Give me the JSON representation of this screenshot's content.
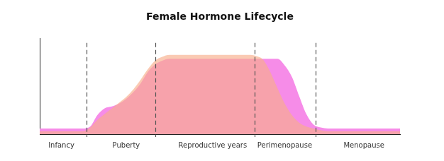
{
  "chart_data": {
    "type": "area",
    "title": "Female Hormone Lifecycle",
    "categories": [
      null,
      null,
      null,
      "Infancy",
      null,
      null,
      null,
      null,
      null,
      null,
      null,
      null,
      "Puberty",
      null,
      null,
      null,
      null,
      null,
      null,
      null,
      null,
      null,
      null,
      null,
      "Reproductive years",
      null,
      null,
      null,
      null,
      null,
      null,
      null,
      null,
      null,
      "Perimenopause",
      null,
      null,
      null,
      null,
      null,
      null,
      null,
      null,
      null,
      null,
      "Menopause",
      null,
      null,
      null,
      null,
      null
    ],
    "series": [
      {
        "color": "#f8ad8a",
        "values": [
          3,
          3,
          3,
          3,
          3,
          3,
          3,
          7,
          15,
          21,
          27,
          33,
          39,
          47,
          57,
          68,
          77,
          81,
          83,
          83,
          83,
          83,
          83,
          83,
          83,
          83,
          83,
          83,
          83,
          83,
          82,
          78,
          65,
          48,
          32,
          20,
          12,
          8,
          6,
          4,
          3,
          3,
          3,
          3,
          3,
          3,
          3,
          3,
          3,
          3,
          3
        ]
      },
      {
        "color": "#f68ce8",
        "values": [
          6,
          6,
          6,
          6,
          6,
          6,
          6,
          8,
          20,
          27,
          29,
          32,
          37,
          44,
          53,
          65,
          73,
          77,
          79,
          79,
          79,
          79,
          79,
          79,
          79,
          79,
          79,
          79,
          79,
          79,
          79,
          79,
          79,
          79,
          72,
          60,
          40,
          21,
          10,
          7,
          6,
          6,
          6,
          6,
          6,
          6,
          6,
          6,
          6,
          6,
          6
        ]
      }
    ],
    "ylim": [
      0,
      100
    ],
    "grid": false,
    "tick_labels": "x"
  }
}
